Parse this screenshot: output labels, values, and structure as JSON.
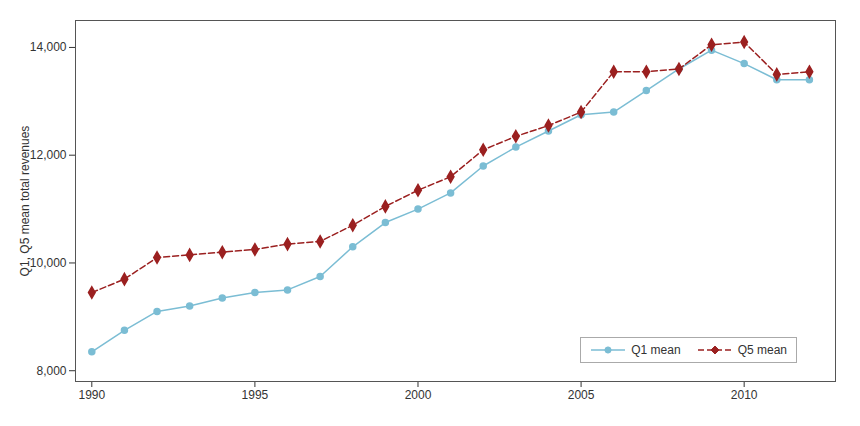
{
  "chart_data": {
    "type": "line",
    "x": [
      1990,
      1991,
      1992,
      1993,
      1994,
      1995,
      1996,
      1997,
      1998,
      1999,
      2000,
      2001,
      2002,
      2003,
      2004,
      2005,
      2006,
      2007,
      2008,
      2009,
      2010,
      2011,
      2012
    ],
    "series": [
      {
        "name": "Q1 mean",
        "color": "#7BBDD4",
        "marker": "circle",
        "line_style": "solid",
        "values": [
          8350,
          8750,
          9100,
          9200,
          9350,
          9450,
          9500,
          9750,
          10300,
          10750,
          11000,
          11300,
          11800,
          12150,
          12450,
          12750,
          12800,
          13200,
          13600,
          13950,
          13700,
          13400,
          13400
        ]
      },
      {
        "name": "Q5 mean",
        "color": "#9B2020",
        "marker": "diamond",
        "line_style": "dashed",
        "values": [
          9450,
          9700,
          10100,
          10150,
          10200,
          10250,
          10350,
          10400,
          10700,
          11050,
          11350,
          11600,
          12100,
          12350,
          12550,
          12800,
          13550,
          13550,
          13600,
          14050,
          14100,
          13500,
          13550
        ]
      }
    ],
    "ylabel": "Q1, Q5 mean total revenues",
    "xlim": [
      1989.5,
      2012.8
    ],
    "xticks": [
      1990,
      1995,
      2000,
      2005,
      2010
    ],
    "ylim": [
      7800,
      14500
    ],
    "yticks": [
      {
        "value": 8000,
        "label": "8,000"
      },
      {
        "value": 10000,
        "label": "10,000"
      },
      {
        "value": 12000,
        "label": "12,000"
      },
      {
        "value": 14000,
        "label": "14,000"
      }
    ],
    "grid": false,
    "legend": "lower right"
  }
}
